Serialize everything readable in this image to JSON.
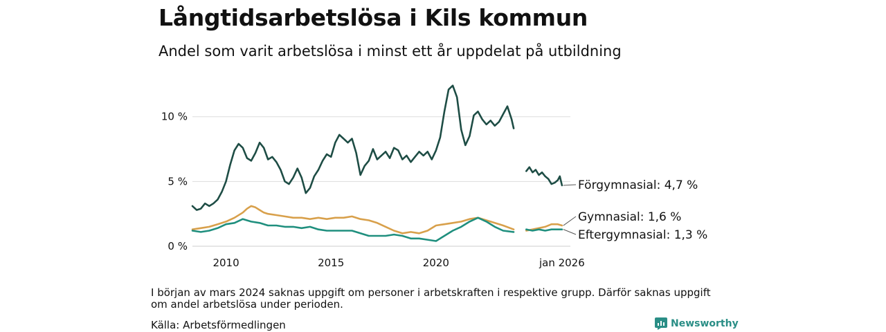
{
  "header": {
    "title": "Långtidsarbetslösa i Kils kommun",
    "subtitle": "Andel som varit arbetslösa i minst ett år uppdelat på utbildning"
  },
  "footer": {
    "note": "I början av mars 2024 saknas uppgift om personer i arbetskraften i respektive grupp. Därför saknas uppgift om andel arbetslösa under perioden.",
    "source": "Källa: Arbetsförmedlingen",
    "brand": "Newsworthy"
  },
  "chart_data": {
    "type": "line",
    "title": "Långtidsarbetslösa i Kils kommun",
    "subtitle": "Andel som varit arbetslösa i minst ett år uppdelat på utbildning",
    "xlabel": "",
    "ylabel": "",
    "xlim": [
      2008.4,
      2026.4
    ],
    "ylim": [
      0,
      12.6
    ],
    "grid": true,
    "y_ticks": [
      {
        "value": 0,
        "label": "0 %"
      },
      {
        "value": 5,
        "label": "5 %"
      },
      {
        "value": 10,
        "label": "10 %"
      }
    ],
    "x_ticks": [
      {
        "value": 2010,
        "label": "2010"
      },
      {
        "value": 2015,
        "label": "2015"
      },
      {
        "value": 2020,
        "label": "2020"
      },
      {
        "value": 2026,
        "label": "jan 2026"
      }
    ],
    "gap": [
      2024.1,
      2024.3
    ],
    "series": [
      {
        "name": "Förgymnasial",
        "end_label": "Förgymnasial: 4,7 %",
        "color": "#1e4d45",
        "points": [
          [
            2008.4,
            3.1
          ],
          [
            2008.6,
            2.8
          ],
          [
            2008.8,
            2.9
          ],
          [
            2009.0,
            3.3
          ],
          [
            2009.2,
            3.1
          ],
          [
            2009.4,
            3.3
          ],
          [
            2009.6,
            3.6
          ],
          [
            2009.8,
            4.2
          ],
          [
            2010.0,
            5.0
          ],
          [
            2010.2,
            6.3
          ],
          [
            2010.4,
            7.4
          ],
          [
            2010.6,
            7.9
          ],
          [
            2010.8,
            7.6
          ],
          [
            2011.0,
            6.8
          ],
          [
            2011.2,
            6.6
          ],
          [
            2011.4,
            7.2
          ],
          [
            2011.6,
            8.0
          ],
          [
            2011.8,
            7.6
          ],
          [
            2012.0,
            6.7
          ],
          [
            2012.2,
            6.9
          ],
          [
            2012.4,
            6.5
          ],
          [
            2012.6,
            5.9
          ],
          [
            2012.8,
            5.0
          ],
          [
            2013.0,
            4.8
          ],
          [
            2013.2,
            5.3
          ],
          [
            2013.4,
            6.0
          ],
          [
            2013.6,
            5.3
          ],
          [
            2013.8,
            4.1
          ],
          [
            2014.0,
            4.5
          ],
          [
            2014.2,
            5.4
          ],
          [
            2014.4,
            5.9
          ],
          [
            2014.6,
            6.6
          ],
          [
            2014.8,
            7.1
          ],
          [
            2015.0,
            6.9
          ],
          [
            2015.2,
            8.0
          ],
          [
            2015.4,
            8.6
          ],
          [
            2015.6,
            8.3
          ],
          [
            2015.8,
            8.0
          ],
          [
            2016.0,
            8.3
          ],
          [
            2016.2,
            7.2
          ],
          [
            2016.4,
            5.5
          ],
          [
            2016.6,
            6.2
          ],
          [
            2016.8,
            6.6
          ],
          [
            2017.0,
            7.5
          ],
          [
            2017.2,
            6.7
          ],
          [
            2017.4,
            7.0
          ],
          [
            2017.6,
            7.3
          ],
          [
            2017.8,
            6.8
          ],
          [
            2018.0,
            7.6
          ],
          [
            2018.2,
            7.4
          ],
          [
            2018.4,
            6.7
          ],
          [
            2018.6,
            7.0
          ],
          [
            2018.8,
            6.5
          ],
          [
            2019.0,
            6.9
          ],
          [
            2019.2,
            7.3
          ],
          [
            2019.4,
            7.0
          ],
          [
            2019.6,
            7.3
          ],
          [
            2019.8,
            6.7
          ],
          [
            2020.0,
            7.4
          ],
          [
            2020.2,
            8.4
          ],
          [
            2020.4,
            10.4
          ],
          [
            2020.6,
            12.1
          ],
          [
            2020.8,
            12.4
          ],
          [
            2021.0,
            11.5
          ],
          [
            2021.2,
            9.0
          ],
          [
            2021.4,
            7.8
          ],
          [
            2021.6,
            8.5
          ],
          [
            2021.8,
            10.1
          ],
          [
            2022.0,
            10.4
          ],
          [
            2022.2,
            9.8
          ],
          [
            2022.4,
            9.4
          ],
          [
            2022.6,
            9.7
          ],
          [
            2022.8,
            9.3
          ],
          [
            2023.0,
            9.6
          ],
          [
            2023.2,
            10.2
          ],
          [
            2023.4,
            10.8
          ],
          [
            2023.6,
            9.8
          ],
          [
            2023.7,
            9.1
          ],
          null,
          [
            2024.3,
            5.8
          ],
          [
            2024.45,
            6.1
          ],
          [
            2024.6,
            5.7
          ],
          [
            2024.75,
            5.9
          ],
          [
            2024.9,
            5.5
          ],
          [
            2025.05,
            5.7
          ],
          [
            2025.2,
            5.4
          ],
          [
            2025.35,
            5.2
          ],
          [
            2025.5,
            4.8
          ],
          [
            2025.65,
            4.9
          ],
          [
            2025.8,
            5.1
          ],
          [
            2025.9,
            5.4
          ],
          [
            2026.0,
            4.7
          ]
        ]
      },
      {
        "name": "Gymnasial",
        "end_label": "Gymnasial: 1,6 %",
        "color": "#d8a04b",
        "points": [
          [
            2008.4,
            1.3
          ],
          [
            2008.8,
            1.4
          ],
          [
            2009.2,
            1.5
          ],
          [
            2009.6,
            1.7
          ],
          [
            2010.0,
            1.9
          ],
          [
            2010.4,
            2.2
          ],
          [
            2010.8,
            2.6
          ],
          [
            2011.0,
            2.9
          ],
          [
            2011.2,
            3.1
          ],
          [
            2011.4,
            3.0
          ],
          [
            2011.6,
            2.8
          ],
          [
            2011.8,
            2.6
          ],
          [
            2012.0,
            2.5
          ],
          [
            2012.4,
            2.4
          ],
          [
            2012.8,
            2.3
          ],
          [
            2013.2,
            2.2
          ],
          [
            2013.6,
            2.2
          ],
          [
            2014.0,
            2.1
          ],
          [
            2014.4,
            2.2
          ],
          [
            2014.8,
            2.1
          ],
          [
            2015.2,
            2.2
          ],
          [
            2015.6,
            2.2
          ],
          [
            2016.0,
            2.3
          ],
          [
            2016.4,
            2.1
          ],
          [
            2016.8,
            2.0
          ],
          [
            2017.2,
            1.8
          ],
          [
            2017.6,
            1.5
          ],
          [
            2018.0,
            1.2
          ],
          [
            2018.4,
            1.0
          ],
          [
            2018.8,
            1.1
          ],
          [
            2019.2,
            1.0
          ],
          [
            2019.6,
            1.2
          ],
          [
            2020.0,
            1.6
          ],
          [
            2020.4,
            1.7
          ],
          [
            2020.8,
            1.8
          ],
          [
            2021.2,
            1.9
          ],
          [
            2021.6,
            2.1
          ],
          [
            2022.0,
            2.2
          ],
          [
            2022.4,
            2.0
          ],
          [
            2022.8,
            1.8
          ],
          [
            2023.2,
            1.6
          ],
          [
            2023.7,
            1.3
          ],
          null,
          [
            2024.3,
            1.2
          ],
          [
            2024.6,
            1.3
          ],
          [
            2024.9,
            1.4
          ],
          [
            2025.2,
            1.5
          ],
          [
            2025.5,
            1.7
          ],
          [
            2025.8,
            1.7
          ],
          [
            2026.0,
            1.6
          ]
        ]
      },
      {
        "name": "Eftergymnasial",
        "end_label": "Eftergymnasial: 1,3 %",
        "color": "#1f8f7e",
        "points": [
          [
            2008.4,
            1.2
          ],
          [
            2008.8,
            1.1
          ],
          [
            2009.2,
            1.2
          ],
          [
            2009.6,
            1.4
          ],
          [
            2010.0,
            1.7
          ],
          [
            2010.4,
            1.8
          ],
          [
            2010.8,
            2.1
          ],
          [
            2011.2,
            1.9
          ],
          [
            2011.6,
            1.8
          ],
          [
            2012.0,
            1.6
          ],
          [
            2012.4,
            1.6
          ],
          [
            2012.8,
            1.5
          ],
          [
            2013.2,
            1.5
          ],
          [
            2013.6,
            1.4
          ],
          [
            2014.0,
            1.5
          ],
          [
            2014.4,
            1.3
          ],
          [
            2014.8,
            1.2
          ],
          [
            2015.2,
            1.2
          ],
          [
            2015.6,
            1.2
          ],
          [
            2016.0,
            1.2
          ],
          [
            2016.4,
            1.0
          ],
          [
            2016.8,
            0.8
          ],
          [
            2017.2,
            0.8
          ],
          [
            2017.6,
            0.8
          ],
          [
            2018.0,
            0.9
          ],
          [
            2018.4,
            0.8
          ],
          [
            2018.8,
            0.6
          ],
          [
            2019.2,
            0.6
          ],
          [
            2019.6,
            0.5
          ],
          [
            2020.0,
            0.4
          ],
          [
            2020.4,
            0.8
          ],
          [
            2020.8,
            1.2
          ],
          [
            2021.2,
            1.5
          ],
          [
            2021.6,
            1.9
          ],
          [
            2022.0,
            2.2
          ],
          [
            2022.4,
            1.9
          ],
          [
            2022.8,
            1.5
          ],
          [
            2023.2,
            1.2
          ],
          [
            2023.7,
            1.1
          ],
          null,
          [
            2024.3,
            1.3
          ],
          [
            2024.6,
            1.2
          ],
          [
            2024.9,
            1.3
          ],
          [
            2025.2,
            1.2
          ],
          [
            2025.5,
            1.3
          ],
          [
            2025.8,
            1.3
          ],
          [
            2026.0,
            1.3
          ]
        ]
      }
    ]
  }
}
